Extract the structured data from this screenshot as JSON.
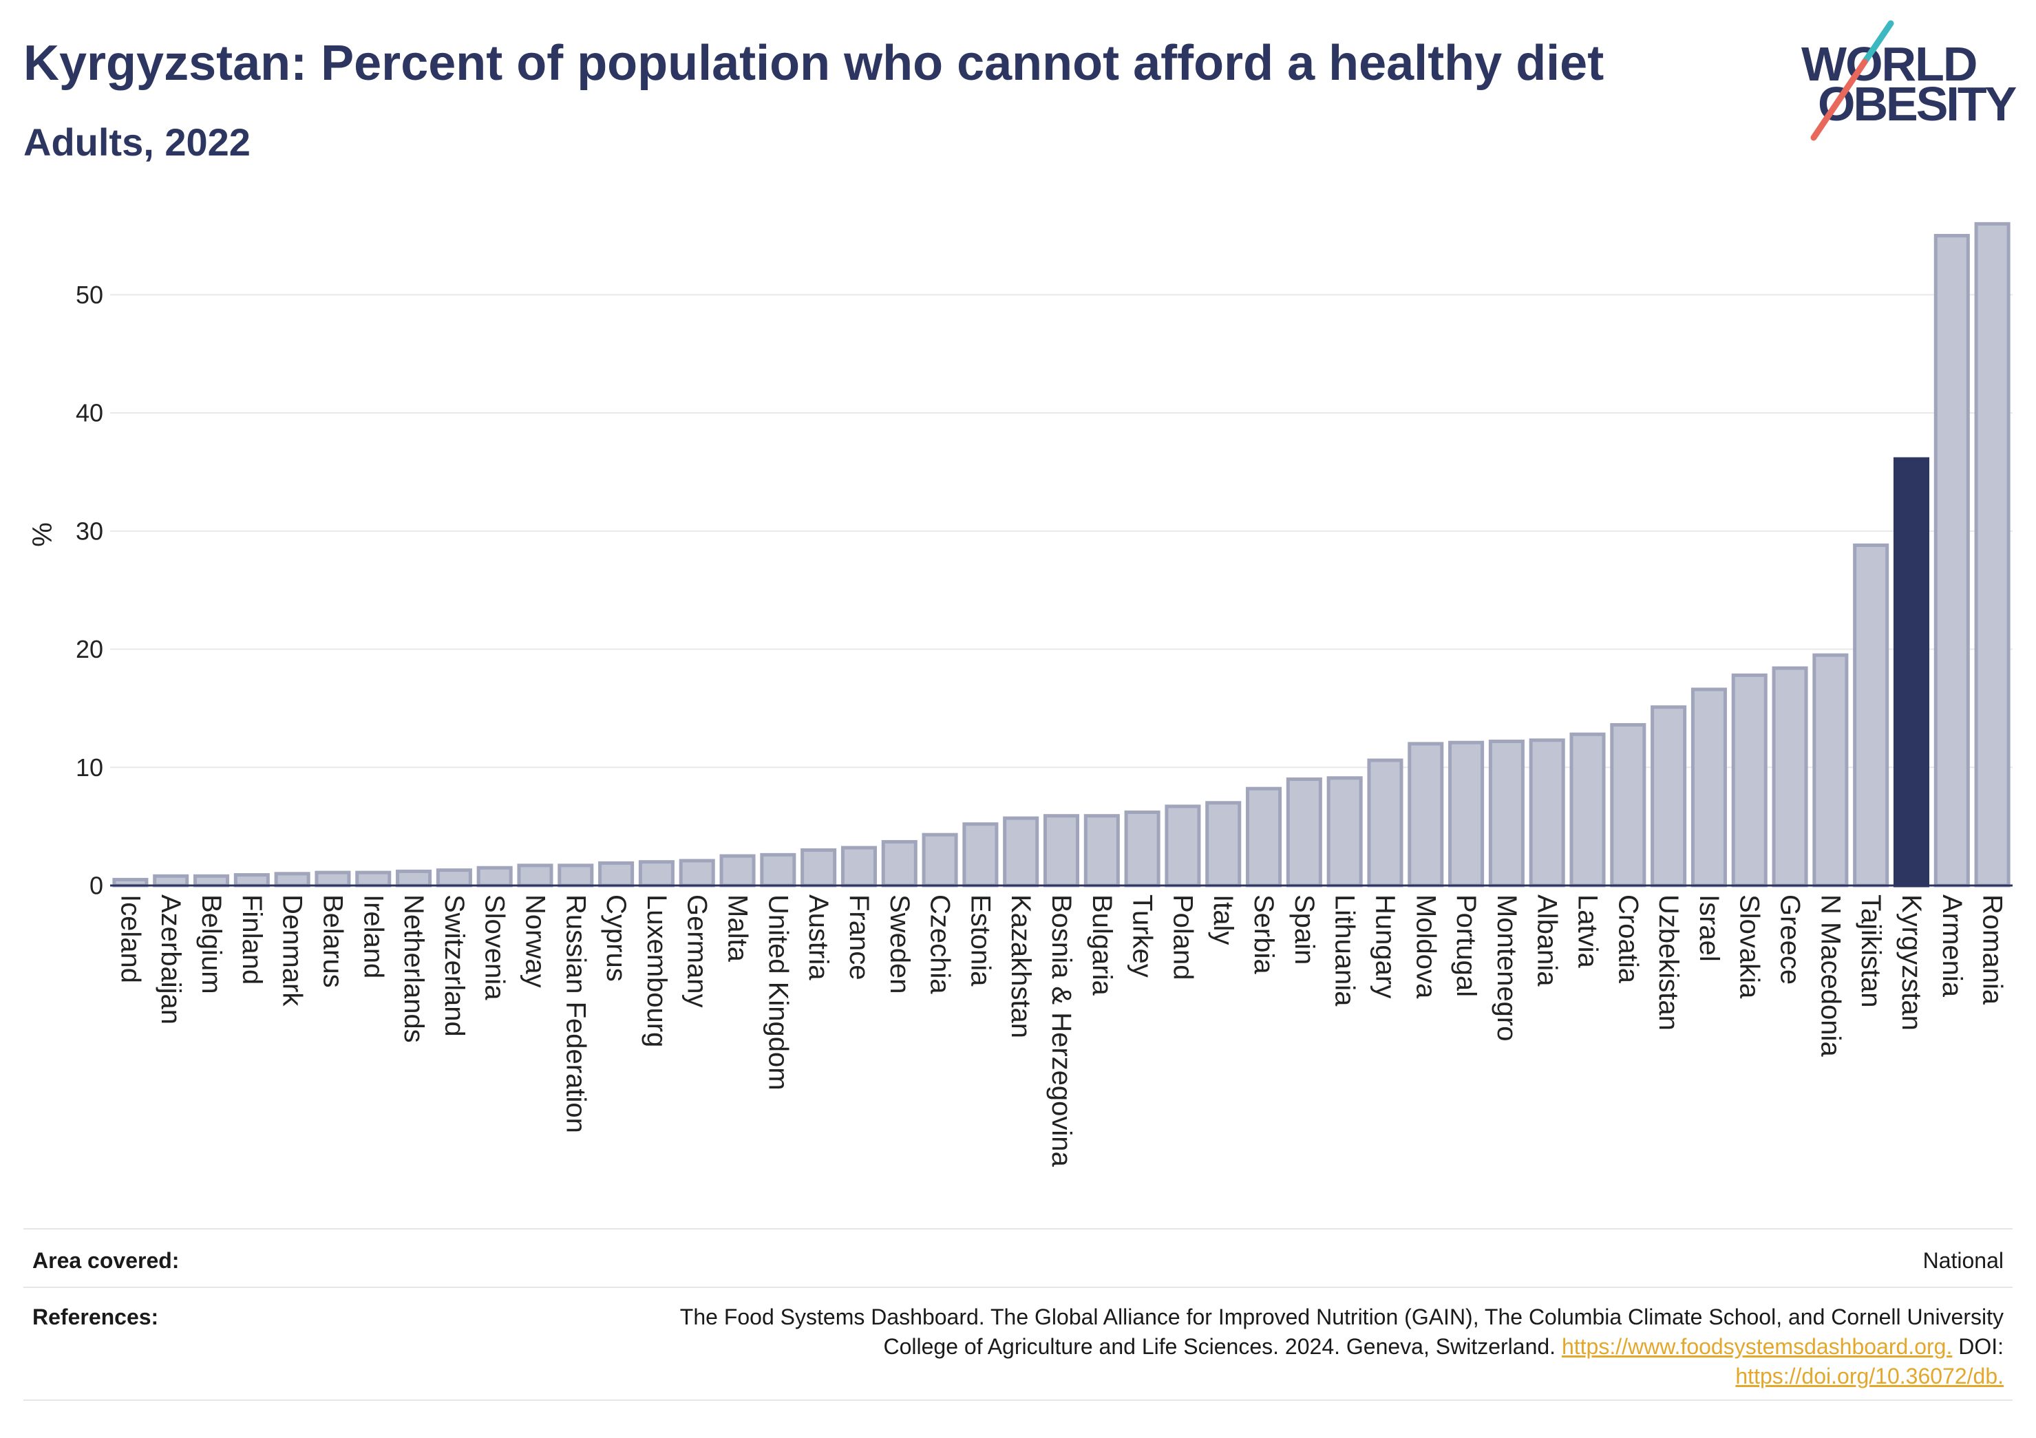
{
  "logo": {
    "line1": "WORLD",
    "line2": "OBESITY",
    "text_color": "#2d3561",
    "slash_top_color": "#3bb8c0",
    "slash_bottom_color": "#e8685b"
  },
  "chart_data": {
    "type": "bar",
    "title": "Kyrgyzstan: Percent of population who cannot afford a healthy diet",
    "subtitle": "Adults, 2022",
    "xlabel": "",
    "ylabel": "%",
    "ylim": [
      0,
      58
    ],
    "yticks": [
      0,
      10,
      20,
      30,
      40,
      50
    ],
    "grid": true,
    "legend": false,
    "highlight": "Kyrgyzstan",
    "categories": [
      "Iceland",
      "Azerbaijan",
      "Belgium",
      "Finland",
      "Denmark",
      "Belarus",
      "Ireland",
      "Netherlands",
      "Switzerland",
      "Slovenia",
      "Norway",
      "Russian Federation",
      "Cyprus",
      "Luxembourg",
      "Germany",
      "Malta",
      "United Kingdom",
      "Austria",
      "France",
      "Sweden",
      "Czechia",
      "Estonia",
      "Kazakhstan",
      "Bosnia & Herzegovina",
      "Bulgaria",
      "Turkey",
      "Poland",
      "Italy",
      "Serbia",
      "Spain",
      "Lithuania",
      "Hungary",
      "Moldova",
      "Portugal",
      "Montenegro",
      "Albania",
      "Latvia",
      "Croatia",
      "Uzbekistan",
      "Israel",
      "Slovakia",
      "Greece",
      "N Macedonia",
      "Tajikistan",
      "Kyrgyzstan",
      "Armenia",
      "Romania"
    ],
    "values": [
      0.5,
      0.8,
      0.8,
      0.9,
      1.0,
      1.1,
      1.1,
      1.2,
      1.3,
      1.5,
      1.7,
      1.7,
      1.9,
      2.0,
      2.1,
      2.5,
      2.6,
      3.0,
      3.2,
      3.7,
      4.3,
      5.2,
      5.7,
      5.9,
      5.9,
      6.2,
      6.7,
      7.0,
      8.2,
      9.0,
      9.1,
      10.6,
      12.0,
      12.1,
      12.2,
      12.3,
      12.8,
      13.6,
      15.1,
      16.6,
      17.8,
      18.4,
      19.5,
      28.8,
      36.1,
      55.0,
      56.0
    ],
    "colors": {
      "bar": "#c0c4d3",
      "bar_border": "#a0a5bc",
      "highlight": "#2d3561",
      "grid": "#e8e8ed",
      "axis": "#2d3561"
    }
  },
  "footer": {
    "area_covered_label": "Area covered:",
    "area_covered_value": "National",
    "references_label": "References:",
    "references_line1": "The Food Systems Dashboard. The Global Alliance for Improved Nutrition (GAIN), The Columbia Climate School, and Cornell University",
    "references_line2_text": "College of Agriculture and Life Sciences. 2024. Geneva, Switzerland.",
    "references_line2_link": "https://www.foodsystemsdashboard.org.",
    "references_line2_suffix": "DOI:",
    "references_line3_link": "https://doi.org/10.36072/db.",
    "link_color": "#e3a82b"
  }
}
